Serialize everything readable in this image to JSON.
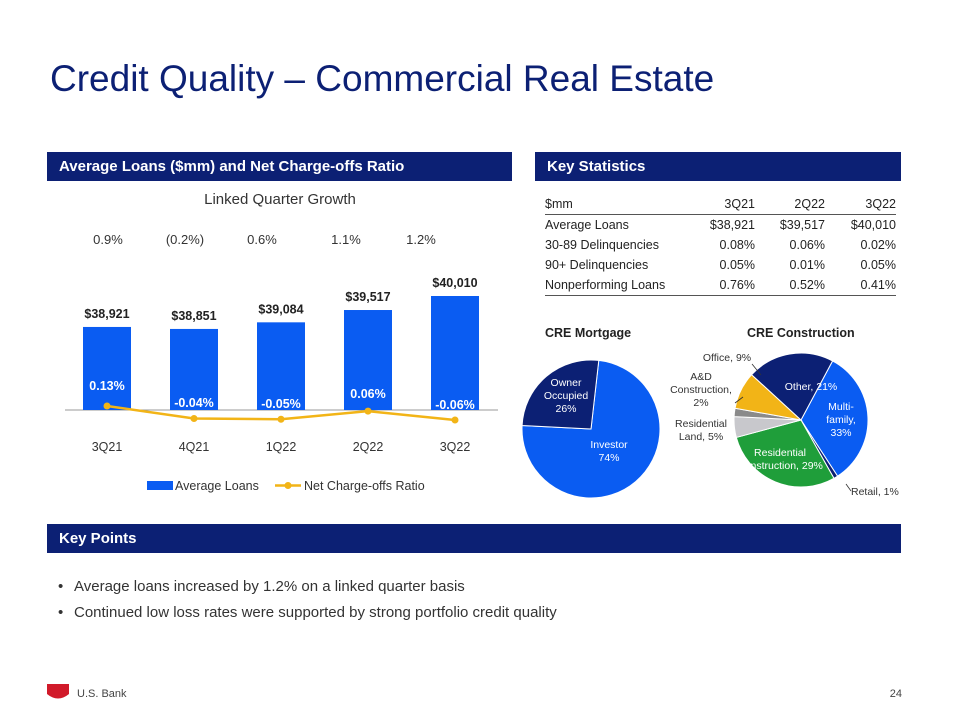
{
  "page": {
    "title": "Credit Quality – Commercial Real Estate",
    "page_number": "24",
    "brand": "U.S. Bank"
  },
  "loans_panel": {
    "header": "Average Loans ($mm) and Net Charge-offs Ratio",
    "subtitle": "Linked Quarter Growth",
    "growth": [
      "0.9%",
      "(0.2%)",
      "0.6%",
      "1.1%",
      "1.2%"
    ]
  },
  "chart_data": [
    {
      "type": "bar",
      "categories": [
        "3Q21",
        "4Q21",
        "1Q22",
        "2Q22",
        "3Q22"
      ],
      "series": [
        {
          "name": "Average Loans",
          "values": [
            38921,
            38851,
            39084,
            39517,
            40010
          ],
          "labels": [
            "$38,921",
            "$38,851",
            "$39,084",
            "$39,517",
            "$40,010"
          ],
          "color": "#0a5cf2"
        },
        {
          "name": "Net Charge-offs Ratio",
          "type": "line",
          "values": [
            0.13,
            -0.04,
            -0.05,
            0.06,
            -0.06
          ],
          "labels": [
            "0.13%",
            "-0.04%",
            "-0.05%",
            "0.06%",
            "-0.06%"
          ],
          "color": "#f2b417"
        }
      ],
      "legend": "bottom"
    },
    {
      "type": "pie",
      "title": "CRE Mortgage",
      "slices": [
        {
          "label": "Investor",
          "value": 74,
          "pct": "74%",
          "color": "#0a5cf2"
        },
        {
          "label": "Owner Occupied",
          "value": 26,
          "pct": "26%",
          "color": "#0c2074"
        }
      ]
    },
    {
      "type": "pie",
      "title": "CRE Construction",
      "slices": [
        {
          "label": "Multi-family",
          "value": 33,
          "text": "Multi-family, 33%",
          "color": "#0a5cf2"
        },
        {
          "label": "Retail",
          "value": 1,
          "text": "Retail, 1%",
          "color": "#0c2074"
        },
        {
          "label": "Residential Construction",
          "value": 29,
          "text": "Residential Construction, 29%",
          "color": "#1f9e3a"
        },
        {
          "label": "Residential Land",
          "value": 5,
          "text": "Residential Land, 5%",
          "color": "#c8c8cc"
        },
        {
          "label": "A&D Construction",
          "value": 2,
          "text": "A&D Construction, 2%",
          "color": "#8a8a8a"
        },
        {
          "label": "Office",
          "value": 9,
          "text": "Office, 9%",
          "color": "#f2b417"
        },
        {
          "label": "Other",
          "value": 21,
          "text": "Other, 21%",
          "color": "#0c2074"
        }
      ]
    }
  ],
  "stats_panel": {
    "header": "Key Statistics",
    "columns": [
      "$mm",
      "3Q21",
      "2Q22",
      "3Q22"
    ],
    "rows": [
      [
        "Average Loans",
        "$38,921",
        "$39,517",
        "$40,010"
      ],
      [
        "30-89 Delinquencies",
        "0.08%",
        "0.06%",
        "0.02%"
      ],
      [
        "90+ Delinquencies",
        "0.05%",
        "0.01%",
        "0.05%"
      ],
      [
        "Nonperforming Loans",
        "0.76%",
        "0.52%",
        "0.41%"
      ]
    ]
  },
  "key_points": {
    "header": "Key Points",
    "items": [
      "Average loans increased by 1.2% on a linked quarter basis",
      "Continued low loss rates were supported by strong portfolio credit quality"
    ]
  },
  "colors": {
    "navy": "#0c2074",
    "blue": "#0a5cf2",
    "gold": "#f2b417",
    "green": "#1f9e3a",
    "logo_red": "#d11a2a"
  }
}
